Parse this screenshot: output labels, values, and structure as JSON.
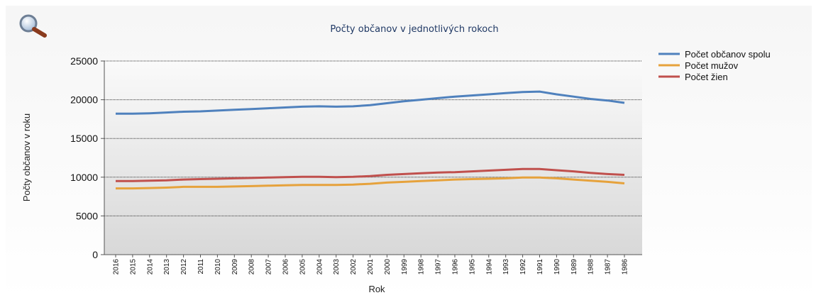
{
  "chart_data": {
    "type": "line",
    "title": "Počty občanov v jednotlivých rokoch",
    "xlabel": "Rok",
    "ylabel": "Počty občanov v roku",
    "ylim": [
      0,
      25000
    ],
    "yticks": [
      0,
      5000,
      10000,
      15000,
      20000,
      25000
    ],
    "grid": true,
    "legend_position": "top-right",
    "categories": [
      "2016",
      "2015",
      "2014",
      "2013",
      "2012",
      "2011",
      "2010",
      "2009",
      "2008",
      "2007",
      "2006",
      "2005",
      "2004",
      "2003",
      "2002",
      "2001",
      "2000",
      "1999",
      "1998",
      "1997",
      "1996",
      "1995",
      "1994",
      "1993",
      "1992",
      "1991",
      "1990",
      "1989",
      "1988",
      "1987",
      "1986"
    ],
    "series": [
      {
        "name": "Počet občanov spolu",
        "color": "#4f81bd",
        "values": [
          18200,
          18200,
          18250,
          18350,
          18450,
          18500,
          18600,
          18700,
          18800,
          18900,
          19000,
          19100,
          19150,
          19100,
          19150,
          19300,
          19550,
          19800,
          20000,
          20200,
          20400,
          20550,
          20700,
          20850,
          21000,
          21050,
          20700,
          20400,
          20100,
          19900,
          19600
        ]
      },
      {
        "name": "Počet mužov",
        "color": "#e6a23c",
        "values": [
          8550,
          8550,
          8600,
          8650,
          8750,
          8750,
          8750,
          8800,
          8850,
          8900,
          8950,
          9000,
          9000,
          9000,
          9050,
          9150,
          9300,
          9400,
          9500,
          9600,
          9700,
          9750,
          9800,
          9850,
          9950,
          9950,
          9850,
          9700,
          9550,
          9400,
          9200
        ]
      },
      {
        "name": "Počet žien",
        "color": "#c0504d",
        "values": [
          9500,
          9500,
          9550,
          9600,
          9700,
          9750,
          9800,
          9850,
          9900,
          9950,
          10000,
          10050,
          10050,
          10000,
          10050,
          10150,
          10300,
          10400,
          10500,
          10600,
          10650,
          10750,
          10850,
          10950,
          11050,
          11050,
          10900,
          10750,
          10550,
          10400,
          10300
        ]
      }
    ]
  },
  "icons": {
    "zoom": "magnifier-icon"
  }
}
